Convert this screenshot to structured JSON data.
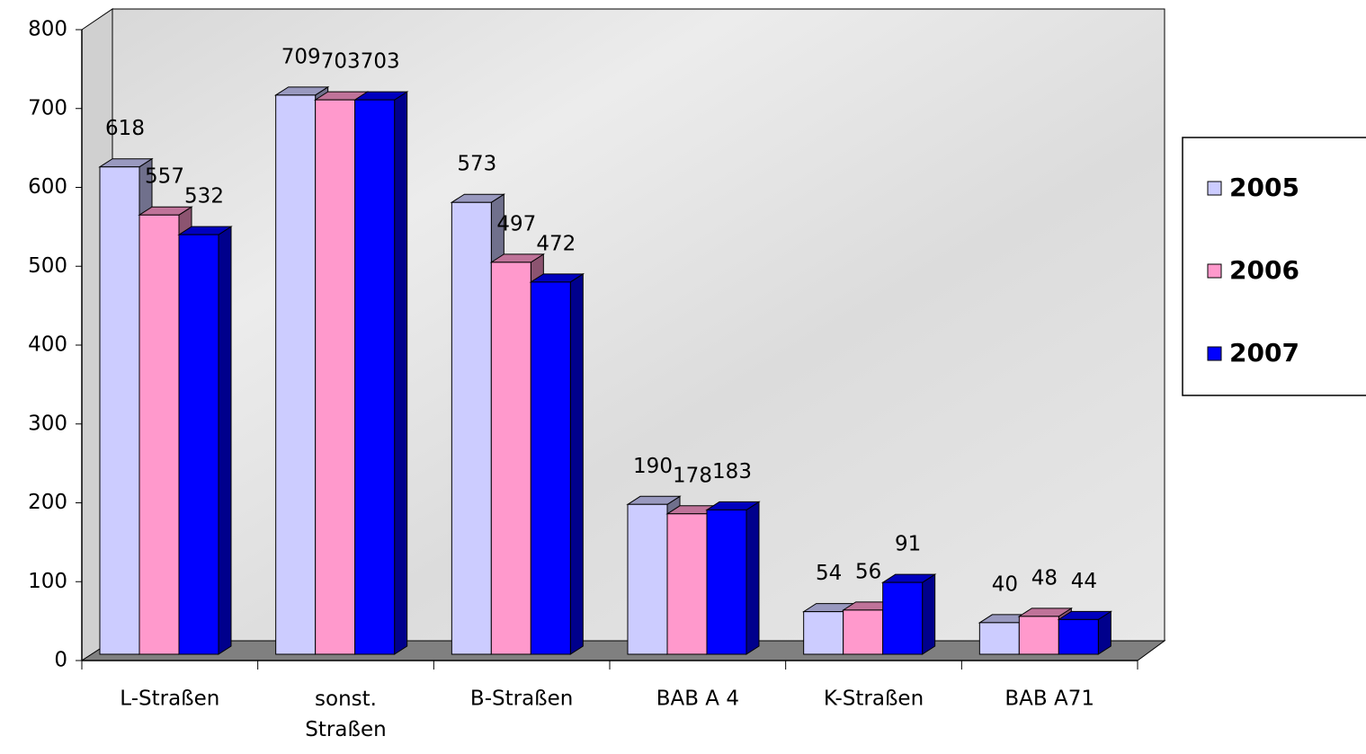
{
  "chart_data": {
    "type": "bar3d",
    "categories": [
      "L-Straßen",
      "sonst.\nStraßen",
      "B-Straßen",
      "BAB A  4",
      "K-Straßen",
      "BAB A71"
    ],
    "series": [
      {
        "name": "2005",
        "color": "#ccccff",
        "values": [
          618,
          709,
          573,
          190,
          54,
          40
        ]
      },
      {
        "name": "2006",
        "color": "#ff99cc",
        "values": [
          557,
          703,
          497,
          178,
          56,
          48
        ]
      },
      {
        "name": "2007",
        "color": "#0000ff",
        "values": [
          532,
          703,
          472,
          183,
          91,
          44
        ]
      }
    ],
    "ylim": [
      0,
      800
    ],
    "yticks": [
      0,
      100,
      200,
      300,
      400,
      500,
      600,
      700,
      800
    ]
  }
}
